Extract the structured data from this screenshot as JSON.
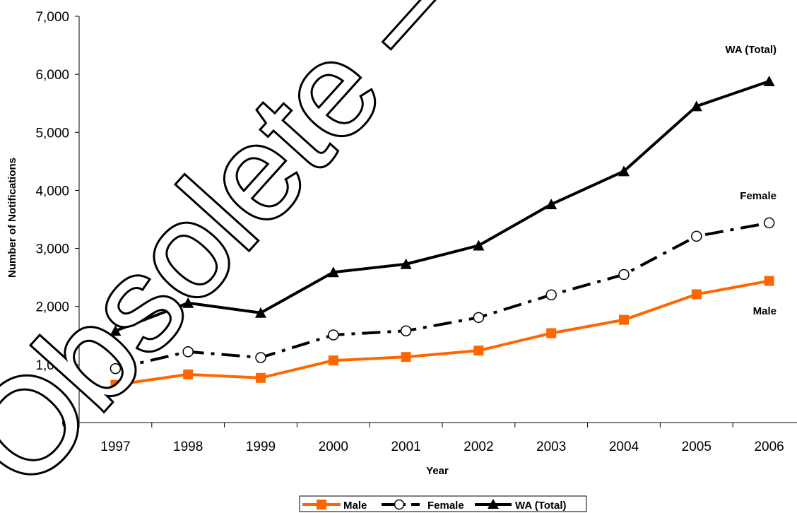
{
  "chart_data": {
    "type": "line",
    "title": "",
    "xlabel": "Year",
    "ylabel": "Number of Notifications",
    "categories": [
      "1997",
      "1998",
      "1999",
      "2000",
      "2001",
      "2002",
      "2003",
      "2004",
      "2005",
      "2006"
    ],
    "ylim": [
      0,
      7000
    ],
    "yticks": [
      "0",
      "1,000",
      "2,000",
      "3,000",
      "4,000",
      "5,000",
      "6,000",
      "7,000"
    ],
    "ytick_values": [
      0,
      1000,
      2000,
      3000,
      4000,
      5000,
      6000,
      7000
    ],
    "grid": false,
    "legend_position": "bottom",
    "series": [
      {
        "name": "Male",
        "values": [
          650,
          830,
          770,
          1070,
          1130,
          1240,
          1540,
          1770,
          2210,
          2440
        ],
        "color": "#ff6600",
        "marker": "square",
        "dash": "solid"
      },
      {
        "name": "Female",
        "values": [
          930,
          1220,
          1120,
          1510,
          1580,
          1810,
          2200,
          2550,
          3210,
          3440
        ],
        "color": "#000000",
        "marker": "open-circle",
        "dash": "dash-dot"
      },
      {
        "name": "WA (Total)",
        "values": [
          1580,
          2060,
          1890,
          2590,
          2730,
          3050,
          3760,
          4330,
          5450,
          5880
        ],
        "color": "#000000",
        "marker": "triangle",
        "dash": "solid"
      }
    ],
    "series_labels": [
      "WA (Total)",
      "Female",
      "Male"
    ]
  },
  "watermark": {
    "text": "Obsolete – for"
  }
}
